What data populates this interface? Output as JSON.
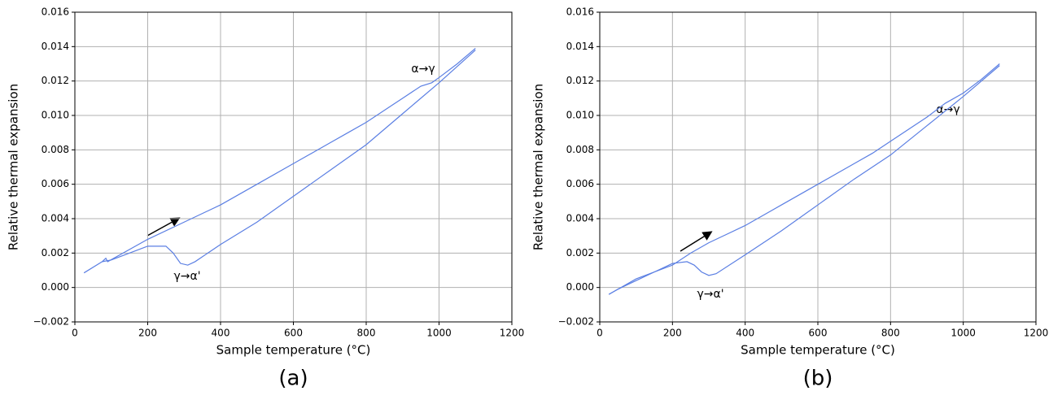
{
  "chart_data": [
    {
      "type": "line",
      "caption": "(a)",
      "xlabel": "Sample temperature (°C)",
      "ylabel": "Relative thermal expansion",
      "annotations": [
        "α→γ",
        "γ→α'"
      ],
      "grid": true,
      "xlim": [
        0,
        1200
      ],
      "xticks": [
        0,
        200,
        400,
        600,
        800,
        1000,
        1200
      ],
      "ylim": [
        -0.002,
        0.016
      ],
      "yticks": [
        {
          "value": -0.002,
          "label": "−0.002"
        },
        {
          "value": 0,
          "label": "0.000"
        },
        {
          "value": 0.002,
          "label": "0.002"
        },
        {
          "value": 0.004,
          "label": "0.004"
        },
        {
          "value": 0.006,
          "label": "0.006"
        },
        {
          "value": 0.008,
          "label": "0.008"
        },
        {
          "value": 0.01,
          "label": "0.010"
        },
        {
          "value": 0.012,
          "label": "0.012"
        },
        {
          "value": 0.014,
          "label": "0.014"
        },
        {
          "value": 0.016,
          "label": "0.016"
        }
      ],
      "series": [
        {
          "color": "#5b7fe3",
          "x": [
            25,
            75,
            85,
            90,
            200,
            300,
            400,
            500,
            600,
            700,
            750,
            800,
            900,
            950,
            980,
            1000,
            1050,
            1100
          ],
          "values": [
            0.00085,
            0.0015,
            0.0017,
            0.0015,
            0.0028,
            0.0038,
            0.0048,
            0.006,
            0.0072,
            0.0084,
            0.009,
            0.0096,
            0.011,
            0.0117,
            0.0119,
            0.0122,
            0.013,
            0.0139
          ]
        },
        {
          "color": "#5b7fe3",
          "x": [
            1100,
            1000,
            900,
            800,
            700,
            600,
            500,
            400,
            330,
            310,
            290,
            270,
            250,
            200,
            150,
            100,
            75
          ],
          "values": [
            0.0138,
            0.0119,
            0.0101,
            0.0083,
            0.0068,
            0.0053,
            0.0038,
            0.0025,
            0.0015,
            0.0013,
            0.0014,
            0.002,
            0.0024,
            0.0024,
            0.002,
            0.0016,
            0.0015
          ]
        }
      ]
    },
    {
      "type": "line",
      "caption": "(b)",
      "xlabel": "Sample temperature (°C)",
      "ylabel": "Relative thermal expansion",
      "annotations": [
        "α→γ",
        "γ→α'"
      ],
      "grid": true,
      "xlim": [
        0,
        1200
      ],
      "xticks": [
        0,
        200,
        400,
        600,
        800,
        1000,
        1200
      ],
      "ylim": [
        -0.002,
        0.016
      ],
      "yticks": [
        {
          "value": -0.002,
          "label": "−0.002"
        },
        {
          "value": 0,
          "label": "0.000"
        },
        {
          "value": 0.002,
          "label": "0.002"
        },
        {
          "value": 0.004,
          "label": "0.004"
        },
        {
          "value": 0.006,
          "label": "0.006"
        },
        {
          "value": 0.008,
          "label": "0.008"
        },
        {
          "value": 0.01,
          "label": "0.010"
        },
        {
          "value": 0.012,
          "label": "0.012"
        },
        {
          "value": 0.014,
          "label": "0.014"
        },
        {
          "value": 0.016,
          "label": "0.016"
        }
      ],
      "series": [
        {
          "color": "#5b7fe3",
          "x": [
            25,
            100,
            200,
            250,
            300,
            400,
            500,
            600,
            700,
            750,
            800,
            900,
            950,
            1000,
            1050,
            1100
          ],
          "values": [
            -0.0004,
            0.0005,
            0.0013,
            0.002,
            0.0026,
            0.0036,
            0.0048,
            0.006,
            0.0072,
            0.0078,
            0.0085,
            0.0099,
            0.0107,
            0.0113,
            0.0121,
            0.013
          ]
        },
        {
          "color": "#5b7fe3",
          "x": [
            1100,
            1000,
            900,
            800,
            700,
            600,
            500,
            400,
            320,
            300,
            280,
            260,
            240,
            200,
            150,
            100,
            50,
            25
          ],
          "values": [
            0.0129,
            0.0111,
            0.0094,
            0.0077,
            0.0063,
            0.0048,
            0.0033,
            0.0019,
            0.0008,
            0.0007,
            0.0009,
            0.0013,
            0.0015,
            0.0014,
            0.0009,
            0.0004,
            -0.0001,
            -0.0004
          ]
        }
      ]
    }
  ]
}
